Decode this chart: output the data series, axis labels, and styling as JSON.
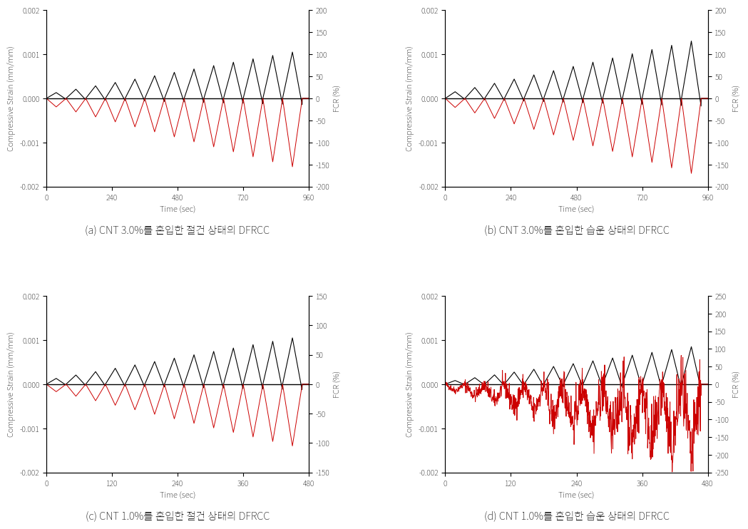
{
  "panels": [
    {
      "label": "(a) CNT 3.0%를 혼입한 절건 상태의 DFRCC",
      "xlim": [
        0,
        960
      ],
      "xticks": [
        0,
        240,
        480,
        720,
        960
      ],
      "ylim_left": [
        -0.002,
        0.002
      ],
      "ylim_right": [
        -200,
        200
      ],
      "yticks_left": [
        -0.002,
        -0.001,
        0,
        0.001,
        0.002
      ],
      "yticks_right": [
        -200,
        -150,
        -100,
        -50,
        0,
        50,
        100,
        150,
        200
      ],
      "strain_n_cycles": 13,
      "strain_period": 72,
      "strain_max_amp": 0.00105,
      "strain_min_amp": 5.5e-05,
      "fcr_n_cycles": 13,
      "fcr_period": 72,
      "fcr_max_amp": 155,
      "fcr_min_amp": 8,
      "fcr_color": "#cc0000",
      "strain_color": "#000000",
      "fcr_noisy": false,
      "fcr_very_noisy": false
    },
    {
      "label": "(b) CNT 3.0%를 혼입한 습운 상태의 DFRCC",
      "xlim": [
        0,
        960
      ],
      "xticks": [
        0,
        240,
        480,
        720,
        960
      ],
      "ylim_left": [
        -0.002,
        0.002
      ],
      "ylim_right": [
        -200,
        200
      ],
      "yticks_left": [
        -0.002,
        -0.001,
        0,
        0.001,
        0.002
      ],
      "yticks_right": [
        -200,
        -150,
        -100,
        -50,
        0,
        50,
        100,
        150,
        200
      ],
      "strain_n_cycles": 13,
      "strain_period": 72,
      "strain_max_amp": 0.0013,
      "strain_min_amp": 5.5e-05,
      "fcr_n_cycles": 13,
      "fcr_period": 72,
      "fcr_max_amp": 170,
      "fcr_min_amp": 8,
      "fcr_color": "#cc0000",
      "strain_color": "#000000",
      "fcr_noisy": false,
      "fcr_very_noisy": false
    },
    {
      "label": "(c) CNT 1.0%를 혼입한 절건 상태의 DFRCC",
      "xlim": [
        0,
        480
      ],
      "xticks": [
        0,
        120,
        240,
        360,
        480
      ],
      "ylim_left": [
        -0.002,
        0.002
      ],
      "ylim_right": [
        -150,
        150
      ],
      "yticks_left": [
        -0.002,
        -0.001,
        0,
        0.001,
        0.002
      ],
      "yticks_right": [
        -150,
        -100,
        -50,
        0,
        50,
        100,
        150
      ],
      "strain_n_cycles": 13,
      "strain_period": 36,
      "strain_max_amp": 0.00105,
      "strain_min_amp": 5.5e-05,
      "fcr_n_cycles": 13,
      "fcr_period": 36,
      "fcr_max_amp": 105,
      "fcr_min_amp": 5,
      "fcr_color": "#cc0000",
      "strain_color": "#000000",
      "fcr_noisy": false,
      "fcr_very_noisy": false
    },
    {
      "label": "(d) CNT 1.0%를 혼입한 습운 상태의 DFRCC",
      "xlim": [
        0,
        480
      ],
      "xticks": [
        0,
        120,
        240,
        360,
        480
      ],
      "ylim_left": [
        -0.002,
        0.002
      ],
      "ylim_right": [
        -250,
        250
      ],
      "yticks_left": [
        -0.002,
        -0.001,
        0,
        0.001,
        0.002
      ],
      "yticks_right": [
        -250,
        -200,
        -150,
        -100,
        -50,
        0,
        50,
        100,
        150,
        200,
        250
      ],
      "strain_n_cycles": 13,
      "strain_period": 36,
      "strain_max_amp": 0.00085,
      "strain_min_amp": 2e-05,
      "fcr_n_cycles": 13,
      "fcr_period": 36,
      "fcr_max_amp": 210,
      "fcr_min_amp": 3,
      "fcr_color": "#cc0000",
      "strain_color": "#000000",
      "fcr_noisy": true,
      "fcr_very_noisy": true
    }
  ],
  "xlabel": "Time (sec)",
  "ylabel_left": "Compressive Strain (mm/mm)",
  "ylabel_right": "FCR (%)",
  "background_color": "#ffffff",
  "label_fontsize": 8,
  "tick_fontsize": 7.5,
  "caption_fontsize": 10.5
}
